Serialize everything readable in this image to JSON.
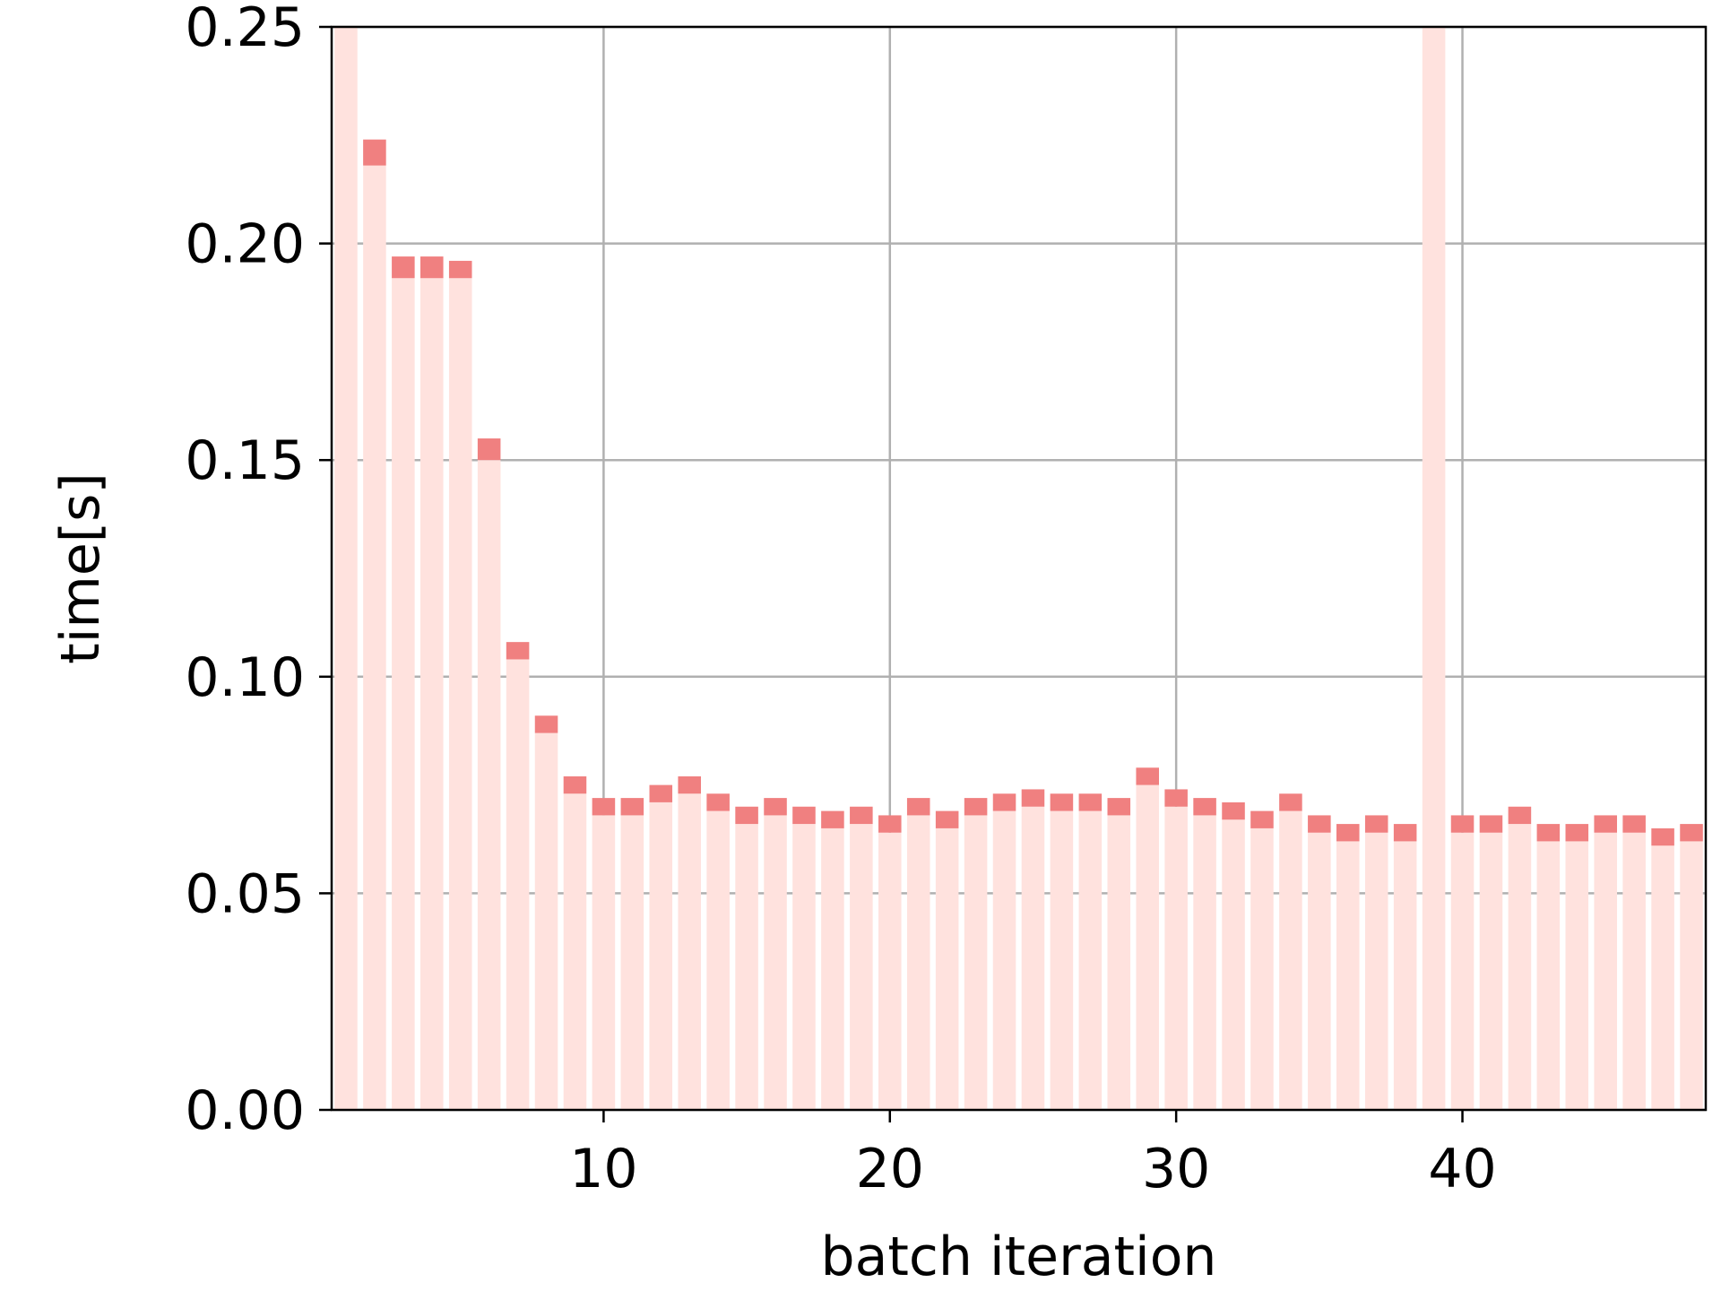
{
  "chart_data": {
    "type": "bar",
    "xlabel": "batch iteration",
    "ylabel": "time[s]",
    "xlim": [
      0.5,
      48.5
    ],
    "ylim": [
      0,
      0.25
    ],
    "xticks": [
      10,
      20,
      30,
      40
    ],
    "yticks": [
      0.0,
      0.05,
      0.1,
      0.15,
      0.2,
      0.25
    ],
    "xtick_labels": [
      "10",
      "20",
      "30",
      "40"
    ],
    "ytick_labels": [
      "0.00",
      "0.05",
      "0.10",
      "0.15",
      "0.20",
      "0.25"
    ],
    "grid": true,
    "x": [
      1,
      2,
      3,
      4,
      5,
      6,
      7,
      8,
      9,
      10,
      11,
      12,
      13,
      14,
      15,
      16,
      17,
      18,
      19,
      20,
      21,
      22,
      23,
      24,
      25,
      26,
      27,
      28,
      29,
      30,
      31,
      32,
      33,
      34,
      35,
      36,
      37,
      38,
      39,
      40,
      41,
      42,
      43,
      44,
      45,
      46,
      47,
      48
    ],
    "series": [
      {
        "values": [
          0.25,
          0.218,
          0.192,
          0.192,
          0.192,
          0.15,
          0.104,
          0.087,
          0.073,
          0.068,
          0.068,
          0.071,
          0.073,
          0.069,
          0.066,
          0.068,
          0.066,
          0.065,
          0.066,
          0.064,
          0.068,
          0.065,
          0.068,
          0.069,
          0.07,
          0.069,
          0.069,
          0.068,
          0.075,
          0.07,
          0.068,
          0.067,
          0.065,
          0.069,
          0.064,
          0.062,
          0.064,
          0.062,
          0.25,
          0.064,
          0.064,
          0.066,
          0.062,
          0.062,
          0.064,
          0.064,
          0.061,
          0.062
        ],
        "color": "#ffe2de"
      },
      {
        "values": [
          null,
          0.224,
          0.197,
          0.197,
          0.196,
          0.155,
          0.108,
          0.091,
          0.077,
          0.072,
          0.072,
          0.075,
          0.077,
          0.073,
          0.07,
          0.072,
          0.07,
          0.069,
          0.07,
          0.068,
          0.072,
          0.069,
          0.072,
          0.073,
          0.074,
          0.073,
          0.073,
          0.072,
          0.079,
          0.074,
          0.072,
          0.071,
          0.069,
          0.073,
          0.068,
          0.066,
          0.068,
          0.066,
          null,
          0.068,
          0.068,
          0.07,
          0.066,
          0.066,
          0.068,
          0.068,
          0.065,
          0.066
        ],
        "color": "#f08080"
      }
    ],
    "gridcolor": "#b0b0b0",
    "axiscolor": "#000000"
  }
}
